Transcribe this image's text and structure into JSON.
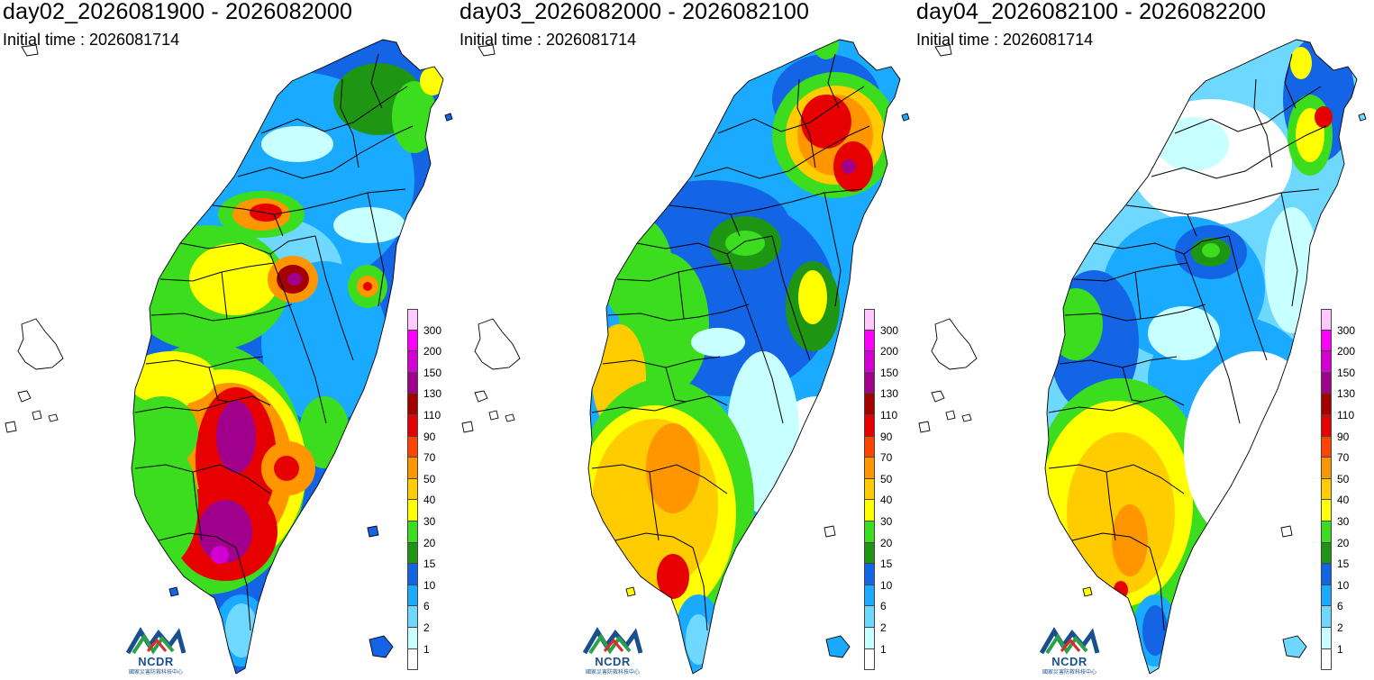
{
  "panels": [
    {
      "title": "day02_2026081900 - 2026082000",
      "subtitle": "Initial time : 2026081714",
      "pattern": "south-heavy"
    },
    {
      "title": "day03_2026082000 - 2026082100",
      "subtitle": "Initial time : 2026081714",
      "pattern": "north-and-southwest"
    },
    {
      "title": "day04_2026082100 - 2026082200",
      "subtitle": "Initial time : 2026081714",
      "pattern": "southwest-moderate"
    }
  ],
  "legend": {
    "levels": [
      "1",
      "2",
      "6",
      "10",
      "15",
      "20",
      "30",
      "40",
      "50",
      "70",
      "90",
      "110",
      "130",
      "150",
      "200",
      "300"
    ],
    "colors": [
      "#ffffff",
      "#c8ffff",
      "#6ed8ff",
      "#1aaaff",
      "#1464e6",
      "#1e9614",
      "#3cdc1e",
      "#ffff00",
      "#ffcc00",
      "#ff9600",
      "#ff4400",
      "#e60000",
      "#a50000",
      "#a0008c",
      "#d200d2",
      "#ff00ff",
      "#ffc8ff"
    ]
  },
  "logo": {
    "name": "NCDR",
    "subtitle": "國家災害防救科技中心"
  }
}
